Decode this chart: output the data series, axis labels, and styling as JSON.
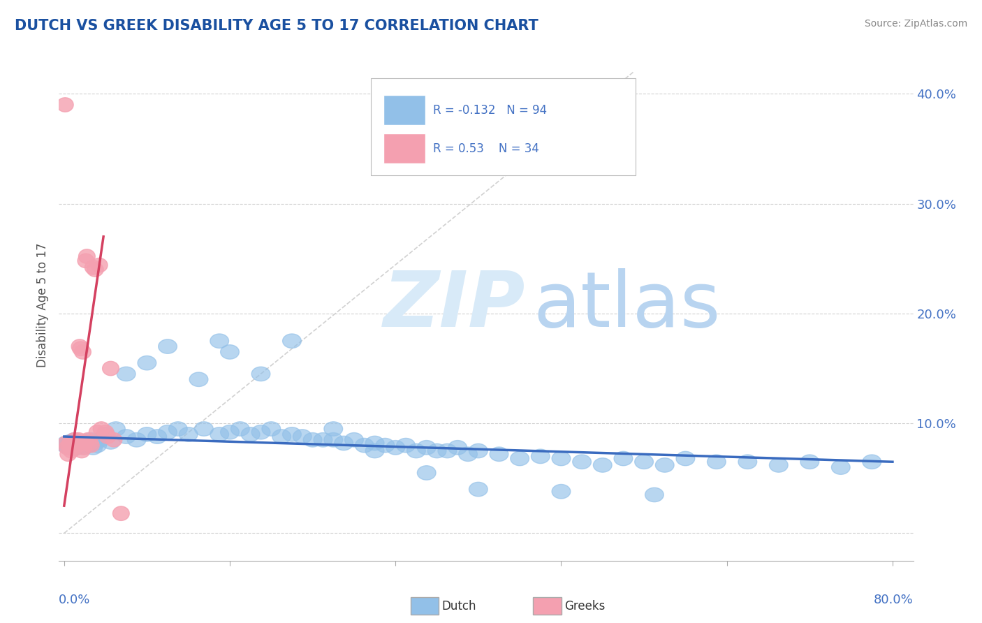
{
  "title": "DUTCH VS GREEK DISABILITY AGE 5 TO 17 CORRELATION CHART",
  "source": "Source: ZipAtlas.com",
  "ylabel": "Disability Age 5 to 17",
  "xlim": [
    0.0,
    0.8
  ],
  "ylim": [
    0.0,
    0.42
  ],
  "yticks": [
    0.0,
    0.1,
    0.2,
    0.3,
    0.4
  ],
  "ytick_labels": [
    "",
    "10.0%",
    "20.0%",
    "30.0%",
    "40.0%"
  ],
  "dutch_R": -0.132,
  "dutch_N": 94,
  "greek_R": 0.53,
  "greek_N": 34,
  "dutch_color": "#92c0e8",
  "greek_color": "#f4a0b0",
  "dutch_line_color": "#3a6bbf",
  "greek_line_color": "#d44060",
  "title_color": "#1a50a0",
  "axis_color": "#4472c4",
  "dutch_x": [
    0.001,
    0.002,
    0.003,
    0.004,
    0.005,
    0.006,
    0.007,
    0.008,
    0.009,
    0.01,
    0.011,
    0.012,
    0.013,
    0.014,
    0.015,
    0.016,
    0.017,
    0.018,
    0.019,
    0.02,
    0.022,
    0.024,
    0.026,
    0.028,
    0.03,
    0.032,
    0.035,
    0.04,
    0.045,
    0.05,
    0.06,
    0.07,
    0.08,
    0.09,
    0.1,
    0.11,
    0.12,
    0.135,
    0.15,
    0.16,
    0.17,
    0.18,
    0.19,
    0.2,
    0.21,
    0.22,
    0.23,
    0.24,
    0.25,
    0.26,
    0.27,
    0.28,
    0.29,
    0.3,
    0.31,
    0.32,
    0.33,
    0.34,
    0.35,
    0.36,
    0.37,
    0.38,
    0.39,
    0.4,
    0.42,
    0.44,
    0.46,
    0.48,
    0.5,
    0.52,
    0.54,
    0.56,
    0.58,
    0.6,
    0.63,
    0.66,
    0.69,
    0.72,
    0.75,
    0.78,
    0.15,
    0.06,
    0.08,
    0.1,
    0.13,
    0.16,
    0.19,
    0.22,
    0.26,
    0.3,
    0.35,
    0.4,
    0.48,
    0.57
  ],
  "dutch_y": [
    0.08,
    0.082,
    0.079,
    0.081,
    0.083,
    0.078,
    0.08,
    0.082,
    0.077,
    0.085,
    0.079,
    0.081,
    0.078,
    0.083,
    0.08,
    0.082,
    0.079,
    0.081,
    0.078,
    0.083,
    0.082,
    0.08,
    0.085,
    0.078,
    0.082,
    0.08,
    0.085,
    0.09,
    0.083,
    0.095,
    0.088,
    0.085,
    0.09,
    0.088,
    0.092,
    0.095,
    0.09,
    0.095,
    0.09,
    0.092,
    0.095,
    0.09,
    0.092,
    0.095,
    0.088,
    0.09,
    0.088,
    0.085,
    0.085,
    0.085,
    0.082,
    0.085,
    0.08,
    0.082,
    0.08,
    0.078,
    0.08,
    0.075,
    0.078,
    0.075,
    0.075,
    0.078,
    0.072,
    0.075,
    0.072,
    0.068,
    0.07,
    0.068,
    0.065,
    0.062,
    0.068,
    0.065,
    0.062,
    0.068,
    0.065,
    0.065,
    0.062,
    0.065,
    0.06,
    0.065,
    0.175,
    0.145,
    0.155,
    0.17,
    0.14,
    0.165,
    0.145,
    0.175,
    0.095,
    0.075,
    0.055,
    0.04,
    0.038,
    0.035
  ],
  "greek_x": [
    0.001,
    0.002,
    0.003,
    0.004,
    0.005,
    0.006,
    0.007,
    0.008,
    0.009,
    0.01,
    0.012,
    0.013,
    0.014,
    0.015,
    0.016,
    0.017,
    0.018,
    0.019,
    0.02,
    0.021,
    0.022,
    0.023,
    0.025,
    0.026,
    0.028,
    0.03,
    0.032,
    0.034,
    0.036,
    0.04,
    0.042,
    0.045,
    0.048,
    0.055
  ],
  "greek_y": [
    0.39,
    0.082,
    0.078,
    0.072,
    0.08,
    0.082,
    0.075,
    0.078,
    0.082,
    0.085,
    0.082,
    0.08,
    0.085,
    0.17,
    0.168,
    0.075,
    0.165,
    0.078,
    0.083,
    0.248,
    0.252,
    0.085,
    0.082,
    0.08,
    0.242,
    0.24,
    0.092,
    0.244,
    0.095,
    0.092,
    0.088,
    0.15,
    0.085,
    0.018
  ],
  "dutch_line_x0": 0.0,
  "dutch_line_y0": 0.088,
  "dutch_line_x1": 0.8,
  "dutch_line_y1": 0.065,
  "greek_line_x0": 0.0,
  "greek_line_y0": 0.025,
  "greek_line_x1": 0.038,
  "greek_line_y1": 0.27
}
